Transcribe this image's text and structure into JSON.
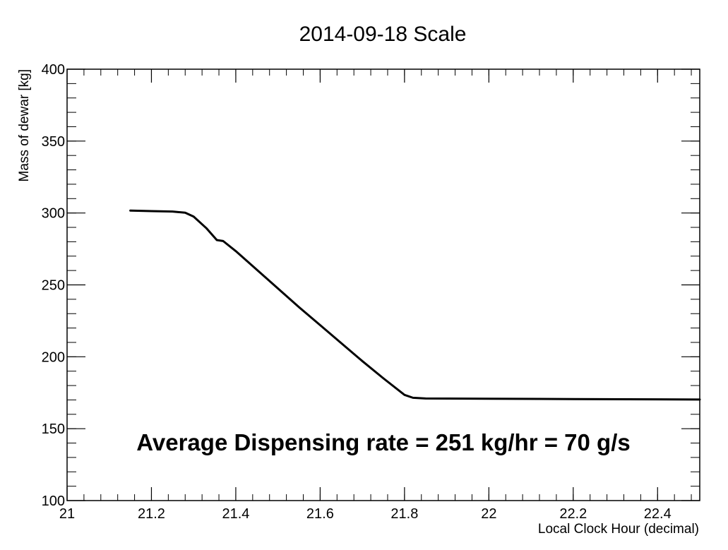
{
  "chart_data": {
    "type": "line",
    "title": "2014-09-18  Scale",
    "xlabel": "Local Clock Hour (decimal)",
    "ylabel": "Mass of dewar [kg]",
    "xlim": [
      21,
      22.5
    ],
    "ylim": [
      100,
      400
    ],
    "xticks": [
      {
        "value": 21,
        "label": "21"
      },
      {
        "value": 21.2,
        "label": "21.2"
      },
      {
        "value": 21.4,
        "label": "21.4"
      },
      {
        "value": 21.6,
        "label": "21.6"
      },
      {
        "value": 21.8,
        "label": "21.8"
      },
      {
        "value": 22,
        "label": "22"
      },
      {
        "value": 22.2,
        "label": "22.2"
      },
      {
        "value": 22.4,
        "label": "22.4"
      }
    ],
    "yticks": [
      {
        "value": 100,
        "label": "100"
      },
      {
        "value": 150,
        "label": "150"
      },
      {
        "value": 200,
        "label": "200"
      },
      {
        "value": 250,
        "label": "250"
      },
      {
        "value": 300,
        "label": "300"
      },
      {
        "value": 350,
        "label": "350"
      },
      {
        "value": 400,
        "label": "400"
      }
    ],
    "series": [
      {
        "name": "dewar mass",
        "color": "#000000",
        "x": [
          21.15,
          21.2,
          21.25,
          21.28,
          21.3,
          21.33,
          21.355,
          21.37,
          21.4,
          21.45,
          21.5,
          21.55,
          21.6,
          21.65,
          21.7,
          21.75,
          21.8,
          21.82,
          21.85,
          22.0,
          22.2,
          22.4,
          22.5
        ],
        "y": [
          301.7,
          301.3,
          301.0,
          300.2,
          297.5,
          289.5,
          281.2,
          280.5,
          273.5,
          260.5,
          247.5,
          234.5,
          222.0,
          209.5,
          197.0,
          185.0,
          173.5,
          171.5,
          171.0,
          170.8,
          170.6,
          170.4,
          170.3
        ]
      }
    ],
    "annotations": [
      {
        "text": "Average Dispensing rate =  251 kg/hr =   70 g/s"
      }
    ]
  }
}
